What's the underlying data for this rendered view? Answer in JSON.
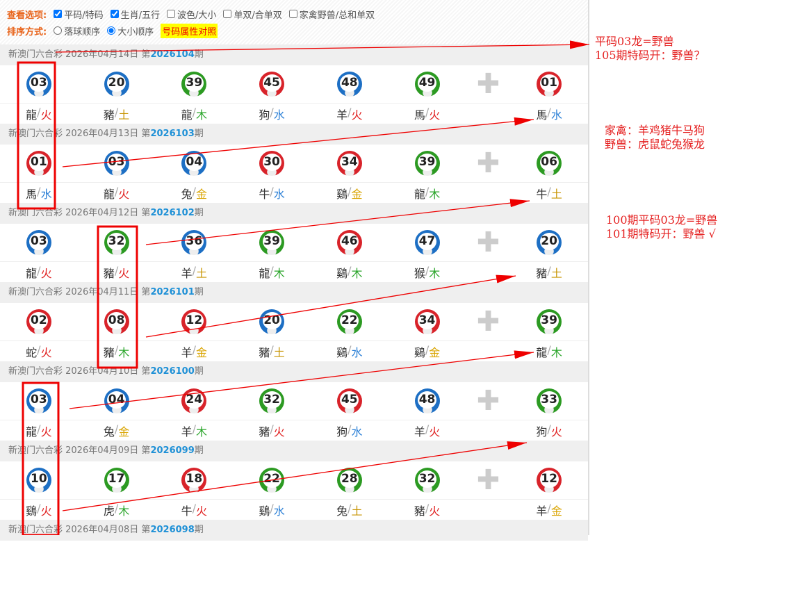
{
  "options": {
    "view_label": "查看选项:",
    "view": [
      {
        "label": "平码/特码",
        "checked": true
      },
      {
        "label": "生肖/五行",
        "checked": true
      },
      {
        "label": "波色/大小",
        "checked": false
      },
      {
        "label": "单双/合单双",
        "checked": false
      },
      {
        "label": "家禽野兽/总和单双",
        "checked": false
      }
    ],
    "sort_label": "排序方式:",
    "sort": [
      {
        "label": "落球顺序",
        "checked": false
      },
      {
        "label": "大小顺序",
        "checked": true
      }
    ],
    "compare_link": "号码属性对照"
  },
  "colors": {
    "red": "#d8232a",
    "blue": "#1d6fc4",
    "green": "#2c9a22",
    "火": "#e02020",
    "土": "#c79400",
    "木": "#2aa52a",
    "水": "#2a7fd6",
    "金": "#d9a400"
  },
  "draws": [
    {
      "prefix": "新澳门六合彩 2026年04月14日 第",
      "period": "2026104",
      "suffix": "期",
      "balls": [
        [
          "03",
          "blue",
          "龍",
          "火"
        ],
        [
          "20",
          "blue",
          "豬",
          "土"
        ],
        [
          "39",
          "green",
          "龍",
          "木"
        ],
        [
          "45",
          "red",
          "狗",
          "水"
        ],
        [
          "48",
          "blue",
          "羊",
          "火"
        ],
        [
          "49",
          "green",
          "馬",
          "火"
        ],
        [
          "01",
          "red",
          "馬",
          "水"
        ]
      ]
    },
    {
      "prefix": "新澳门六合彩 2026年04月13日 第",
      "period": "2026103",
      "suffix": "期",
      "balls": [
        [
          "01",
          "red",
          "馬",
          "水"
        ],
        [
          "03",
          "blue",
          "龍",
          "火"
        ],
        [
          "04",
          "blue",
          "兔",
          "金"
        ],
        [
          "30",
          "red",
          "牛",
          "水"
        ],
        [
          "34",
          "red",
          "鷄",
          "金"
        ],
        [
          "39",
          "green",
          "龍",
          "木"
        ],
        [
          "06",
          "green",
          "牛",
          "土"
        ]
      ]
    },
    {
      "prefix": "新澳门六合彩 2026年04月12日 第",
      "period": "2026102",
      "suffix": "期",
      "balls": [
        [
          "03",
          "blue",
          "龍",
          "火"
        ],
        [
          "32",
          "green",
          "豬",
          "火"
        ],
        [
          "36",
          "blue",
          "羊",
          "土"
        ],
        [
          "39",
          "green",
          "龍",
          "木"
        ],
        [
          "46",
          "red",
          "鷄",
          "木"
        ],
        [
          "47",
          "blue",
          "猴",
          "木"
        ],
        [
          "20",
          "blue",
          "豬",
          "土"
        ]
      ]
    },
    {
      "prefix": "新澳门六合彩 2026年04月11日 第",
      "period": "2026101",
      "suffix": "期",
      "balls": [
        [
          "02",
          "red",
          "蛇",
          "火"
        ],
        [
          "08",
          "red",
          "豬",
          "木"
        ],
        [
          "12",
          "red",
          "羊",
          "金"
        ],
        [
          "20",
          "blue",
          "豬",
          "土"
        ],
        [
          "22",
          "green",
          "鷄",
          "水"
        ],
        [
          "34",
          "red",
          "鷄",
          "金"
        ],
        [
          "39",
          "green",
          "龍",
          "木"
        ]
      ]
    },
    {
      "prefix": "新澳门六合彩 2026年04月10日 第",
      "period": "2026100",
      "suffix": "期",
      "balls": [
        [
          "03",
          "blue",
          "龍",
          "火"
        ],
        [
          "04",
          "blue",
          "兔",
          "金"
        ],
        [
          "24",
          "red",
          "羊",
          "木"
        ],
        [
          "32",
          "green",
          "豬",
          "火"
        ],
        [
          "45",
          "red",
          "狗",
          "水"
        ],
        [
          "48",
          "blue",
          "羊",
          "火"
        ],
        [
          "33",
          "green",
          "狗",
          "火"
        ]
      ]
    },
    {
      "prefix": "新澳门六合彩 2026年04月09日 第",
      "period": "2026099",
      "suffix": "期",
      "balls": [
        [
          "10",
          "blue",
          "鷄",
          "火"
        ],
        [
          "17",
          "green",
          "虎",
          "木"
        ],
        [
          "18",
          "red",
          "牛",
          "火"
        ],
        [
          "22",
          "green",
          "鷄",
          "水"
        ],
        [
          "28",
          "green",
          "兔",
          "土"
        ],
        [
          "32",
          "green",
          "豬",
          "火"
        ],
        [
          "12",
          "red",
          "羊",
          "金"
        ]
      ]
    },
    {
      "prefix": "新澳门六合彩 2026年04月08日 第",
      "period": "2026098",
      "suffix": "期",
      "balls": []
    }
  ],
  "annotations": {
    "note1": [
      "平码03龙=野兽",
      "105期特码开：野兽？"
    ],
    "note2": [
      "家禽：羊鸡猪牛马狗",
      "野兽：虎鼠蛇兔猴龙"
    ],
    "note3": [
      "100期平码03龙=野兽",
      "101期特码开：野兽 √"
    ]
  }
}
